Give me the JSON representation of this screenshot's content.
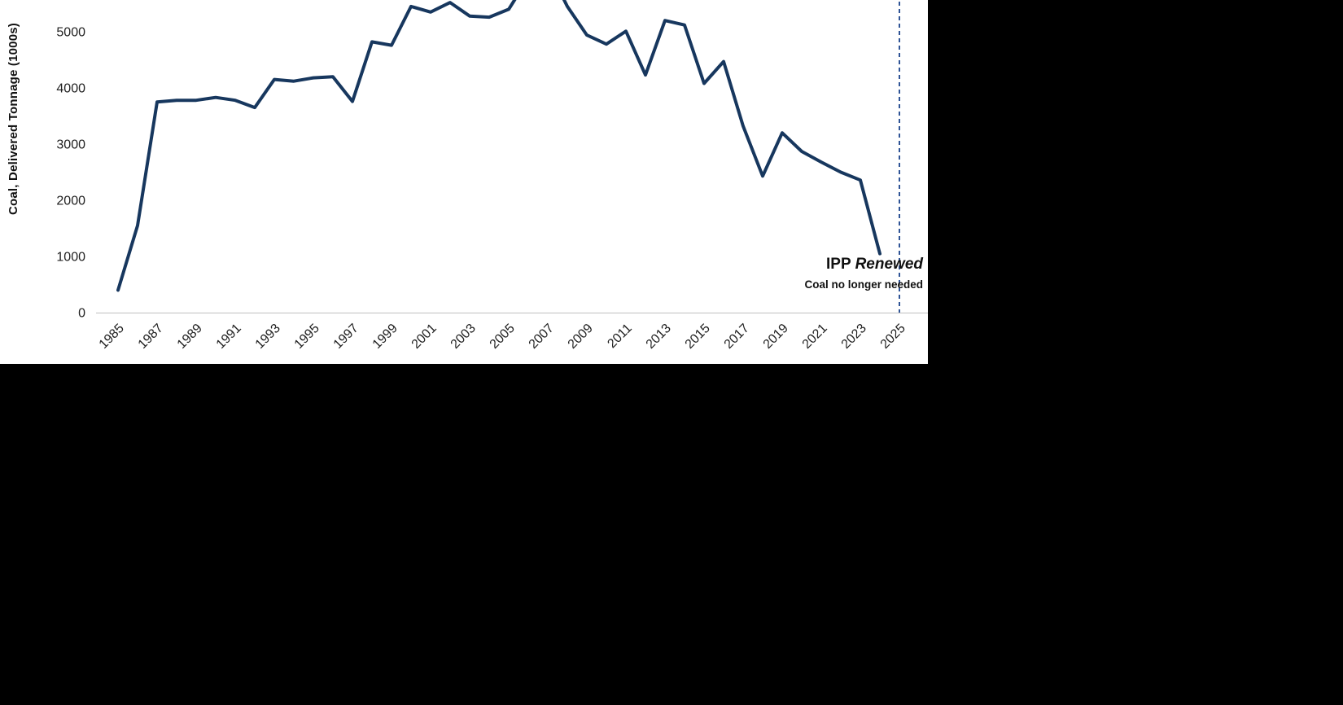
{
  "page": {
    "background": "#000000"
  },
  "chart": {
    "y_axis_title": "Coal, Delivered Tonnage (1000s)",
    "annotation": {
      "title_bold": "IPP",
      "title_italic": "Renewed",
      "subtitle": "Coal no longer needed"
    }
  },
  "chart_data": {
    "type": "line",
    "title": "",
    "xlabel": "",
    "ylabel": "Coal, Delivered Tonnage (1000s)",
    "x": [
      1985,
      1986,
      1987,
      1988,
      1989,
      1990,
      1991,
      1992,
      1993,
      1994,
      1995,
      1996,
      1997,
      1998,
      1999,
      2000,
      2001,
      2002,
      2003,
      2004,
      2005,
      2006,
      2007,
      2008,
      2009,
      2010,
      2011,
      2012,
      2013,
      2014,
      2015,
      2016,
      2017,
      2018,
      2019,
      2020,
      2021,
      2022,
      2023,
      2024
    ],
    "values": [
      400,
      1550,
      3750,
      3780,
      3780,
      3830,
      3780,
      3650,
      4150,
      4120,
      4180,
      4200,
      3760,
      4820,
      4760,
      5450,
      5350,
      5520,
      5280,
      5260,
      5400,
      5950,
      6150,
      5450,
      4940,
      4780,
      5010,
      4230,
      5200,
      5120,
      4080,
      4470,
      3320,
      2430,
      3200,
      2870,
      2680,
      2500,
      2360,
      1050
    ],
    "ytick_values": [
      0,
      1000,
      2000,
      3000,
      4000,
      5000
    ],
    "xtick_years": [
      1985,
      1987,
      1989,
      1991,
      1993,
      1995,
      1997,
      1999,
      2001,
      2003,
      2005,
      2007,
      2009,
      2011,
      2013,
      2015,
      2017,
      2019,
      2021,
      2023,
      2025
    ],
    "ylim_visible": [
      0,
      5570
    ],
    "xlim": [
      1985,
      2026
    ],
    "grid": false,
    "legend": "none",
    "line_color": "#17375e",
    "event_line": {
      "year": 2025,
      "color": "#2f5496",
      "style": "dashed"
    },
    "annotations": [
      "IPP Renewed",
      "Coal no longer needed"
    ],
    "note": "peak values 2006-2007 are clipped by the top edge of the cropped figure"
  }
}
